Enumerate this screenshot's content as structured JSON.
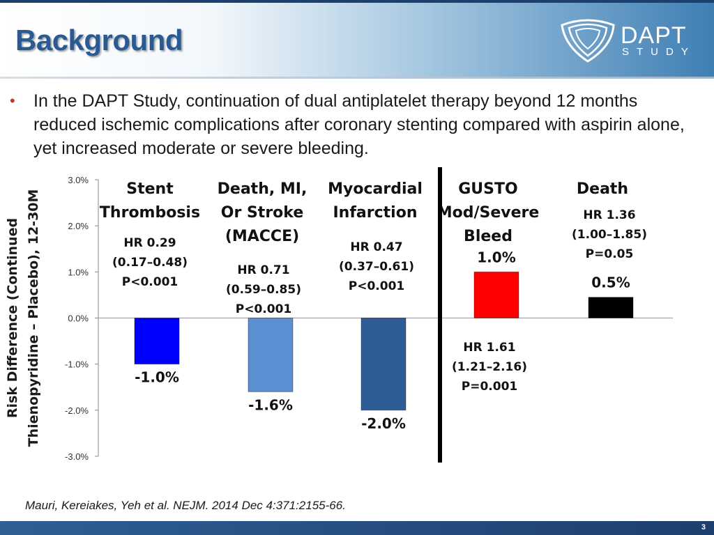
{
  "slide": {
    "title": "Background",
    "logo": {
      "word": "DAPT",
      "sub": "STUDY",
      "icon": "dapt-shield-logo-icon"
    },
    "bullet": "In the DAPT Study, continuation of dual antiplatelet therapy beyond 12 months reduced ischemic complications after coronary stenting compared with aspirin alone, yet increased moderate or severe bleeding.",
    "reference": "Mauri, Kereiakes, Yeh et al.  NEJM.  2014 Dec 4:371:2155-66.",
    "page_number": "3"
  },
  "colors": {
    "title": "#2a5a94",
    "bullet_marker": "#c0392b",
    "bar_stent": "#0000ff",
    "bar_macce": "#5b8fd1",
    "bar_mi": "#2e5c94",
    "bar_bleed": "#ff0000",
    "bar_death": "#000000"
  },
  "chart_data": {
    "type": "bar",
    "ylabel_line1": "Risk Difference (Continued",
    "ylabel_line2": "Thienopyridine – Placebo), 12-30M",
    "ylim": [
      -3.0,
      3.0
    ],
    "yticks": [
      "3.0%",
      "2.0%",
      "1.0%",
      "0.0%",
      "-1.0%",
      "-2.0%",
      "-3.0%"
    ],
    "ytick_values": [
      3,
      2,
      1,
      0,
      -1,
      -2,
      -3
    ],
    "divider_after_category": 3,
    "categories": [
      {
        "name_lines": [
          "Stent",
          "Thrombosis"
        ],
        "value": -1.0,
        "value_label": "-1.0%",
        "hr_lines": [
          "HR 0.29",
          "(0.17–0.48)",
          "P<0.001"
        ],
        "color": "#0000ff"
      },
      {
        "name_lines": [
          "Death, MI,",
          "Or Stroke",
          "(MACCE)"
        ],
        "value": -1.6,
        "value_label": "-1.6%",
        "hr_lines": [
          "HR 0.71",
          "(0.59–0.85)",
          "P<0.001"
        ],
        "color": "#5b8fd1"
      },
      {
        "name_lines": [
          "Myocardial",
          "Infarction"
        ],
        "value": -2.0,
        "value_label": "-2.0%",
        "hr_lines": [
          "HR 0.47",
          "(0.37–0.61)",
          "P<0.001"
        ],
        "color": "#2e5c94"
      },
      {
        "name_lines": [
          "GUSTO",
          "Mod/Severe",
          "Bleed"
        ],
        "value": 1.0,
        "value_label": "1.0%",
        "hr_lines": [
          "HR 1.61",
          "(1.21–2.16)",
          "P=0.001"
        ],
        "color": "#ff0000"
      },
      {
        "name_lines": [
          "Death"
        ],
        "value": 0.45,
        "value_label": "0.5%",
        "hr_lines": [
          "HR 1.36",
          "(1.00–1.85)",
          "P=0.05"
        ],
        "color": "#000000"
      }
    ]
  }
}
